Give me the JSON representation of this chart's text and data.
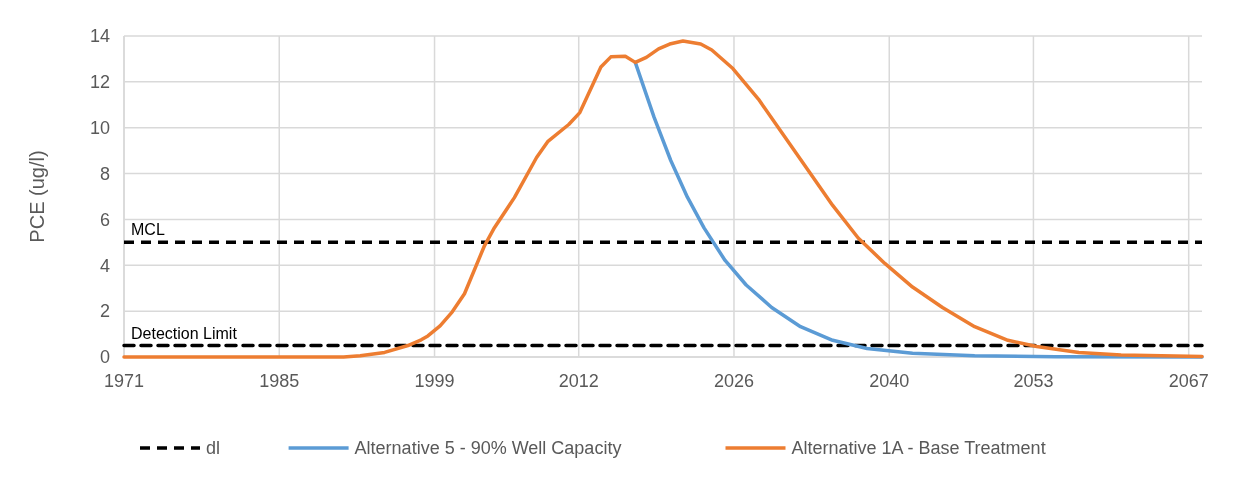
{
  "chart_data": {
    "type": "line",
    "ylabel": "PCE (ug/l)",
    "xlim": [
      1971,
      2068.2
    ],
    "xticks": [
      1971,
      1985,
      1999,
      2012,
      2026,
      2040,
      2053,
      2067
    ],
    "ylim": [
      0,
      14
    ],
    "yticks": [
      0,
      2,
      4,
      6,
      8,
      10,
      12,
      14
    ],
    "grid": true,
    "legend": "bottom",
    "marker": "none",
    "ref_lines": [
      {
        "axis": "y",
        "value": 5,
        "label": "MCL",
        "color": "#000000",
        "line_style": "dashed"
      }
    ],
    "annotations": [
      {
        "text": "Detection Limit",
        "x": 1971,
        "y": 0.5
      }
    ],
    "series": [
      {
        "name": "dl",
        "color": "#000000",
        "line_style": "dashed",
        "x": [
          1971,
          2068.2
        ],
        "values": [
          0.5,
          0.5
        ]
      },
      {
        "name": "Alternative 5 - 90% Well Capacity",
        "color": "#5b9bd5",
        "line_style": "solid",
        "x": [
          2017.1,
          2018.8,
          2020.3,
          2021.8,
          2023.3,
          2025.2,
          2027.1,
          2029.4,
          2032.0,
          2034.9,
          2038.0,
          2042.1,
          2047.7,
          2055,
          2068.2
        ],
        "values": [
          12.85,
          10.45,
          8.57,
          6.97,
          5.63,
          4.21,
          3.14,
          2.16,
          1.32,
          0.73,
          0.37,
          0.16,
          0.05,
          0.01,
          0
        ]
      },
      {
        "name": "Alternative 1A - Base Treatment",
        "color": "#ed7d31",
        "line_style": "solid",
        "x": [
          1971,
          1990.8,
          1992.3,
          1994.5,
          1996.6,
          1997.8,
          1998.4,
          1999.5,
          2000.6,
          2001.7,
          2003.5,
          2004.4,
          2006.2,
          2008.2,
          2009.2,
          2011.1,
          2012.1,
          2014.0,
          2014.9,
          2016.2,
          2017.1,
          2018.1,
          2019.2,
          2020.2,
          2021.4,
          2023.0,
          2024.0,
          2025.9,
          2028.2,
          2030.4,
          2032.7,
          2034.9,
          2037.2,
          2039.6,
          2042.1,
          2044.8,
          2047.7,
          2050.7,
          2053.3,
          2057.1,
          2060.9,
          2068.2
        ],
        "values": [
          0,
          0,
          0.05,
          0.2,
          0.5,
          0.75,
          0.92,
          1.36,
          1.97,
          2.76,
          4.85,
          5.64,
          6.95,
          8.7,
          9.39,
          10.14,
          10.66,
          12.65,
          13.09,
          13.12,
          12.85,
          13.07,
          13.44,
          13.65,
          13.78,
          13.65,
          13.39,
          12.58,
          11.25,
          9.73,
          8.13,
          6.61,
          5.19,
          4.08,
          3.05,
          2.16,
          1.32,
          0.73,
          0.46,
          0.2,
          0.09,
          0.02
        ]
      }
    ]
  }
}
